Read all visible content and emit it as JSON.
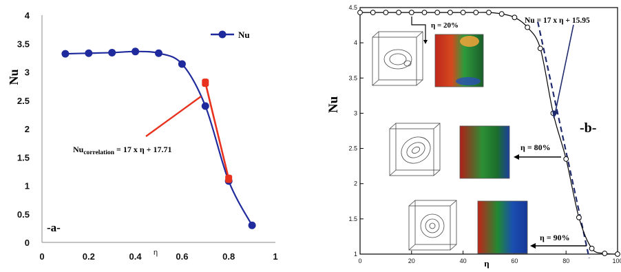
{
  "chart_data": [
    {
      "type": "line",
      "panel_label": "-a-",
      "xlabel": "η",
      "ylabel": "Nu",
      "xlim": [
        0,
        1
      ],
      "ylim": [
        0,
        4
      ],
      "x_ticks": [
        "0",
        "0.2",
        "0.4",
        "0.6",
        "0.8",
        "1"
      ],
      "y_ticks": [
        "0",
        "0.5",
        "1",
        "1.5",
        "2",
        "2.5",
        "3",
        "3.5",
        "4"
      ],
      "legend_position": "top-right",
      "series": [
        {
          "name": "Nu",
          "color": "#1f2a9c",
          "marker": "circle",
          "x": [
            0.1,
            0.2,
            0.3,
            0.4,
            0.5,
            0.6,
            0.7,
            0.8,
            0.9
          ],
          "y": [
            3.32,
            3.33,
            3.34,
            3.36,
            3.33,
            3.14,
            2.4,
            1.08,
            0.3
          ]
        },
        {
          "color": "#e8321e",
          "marker": "square",
          "x": [
            0.7,
            0.8
          ],
          "y": [
            2.81,
            1.12
          ]
        }
      ],
      "annotation": {
        "prefix": "Nu",
        "subscript": "correlation",
        "suffix": " = 17 x η + 17.71"
      }
    },
    {
      "type": "line",
      "panel_label": "-b-",
      "xlabel": "η",
      "ylabel": "Nu",
      "xlim": [
        0,
        100
      ],
      "ylim": [
        1,
        4.5
      ],
      "x_ticks": [
        "0",
        "20",
        "40",
        "60",
        "80",
        "100"
      ],
      "y_ticks": [
        "1",
        "1.5",
        "2",
        "2.5",
        "3",
        "3.5",
        "4",
        "4.5"
      ],
      "series": [
        {
          "color": "#000000",
          "marker": "open-circle",
          "x": [
            0,
            5,
            10,
            15,
            20,
            25,
            30,
            35,
            40,
            45,
            50,
            55,
            60,
            65,
            70,
            75,
            80,
            85,
            90,
            95,
            100
          ],
          "y": [
            4.43,
            4.43,
            4.43,
            4.43,
            4.43,
            4.43,
            4.43,
            4.43,
            4.43,
            4.43,
            4.43,
            4.41,
            4.36,
            4.22,
            3.92,
            3.0,
            2.35,
            1.52,
            1.08,
            1.01,
            1.0
          ]
        },
        {
          "color": "#1f2a6c",
          "style": "dashed",
          "x": [
            69,
            89
          ],
          "y": [
            4.3,
            0.9
          ]
        }
      ],
      "annotations": [
        {
          "text": "Nu = 17 x η + 15.95"
        },
        {
          "text": "η = 20%"
        },
        {
          "text": "η = 80%"
        },
        {
          "text": "η = 90%"
        }
      ]
    }
  ]
}
